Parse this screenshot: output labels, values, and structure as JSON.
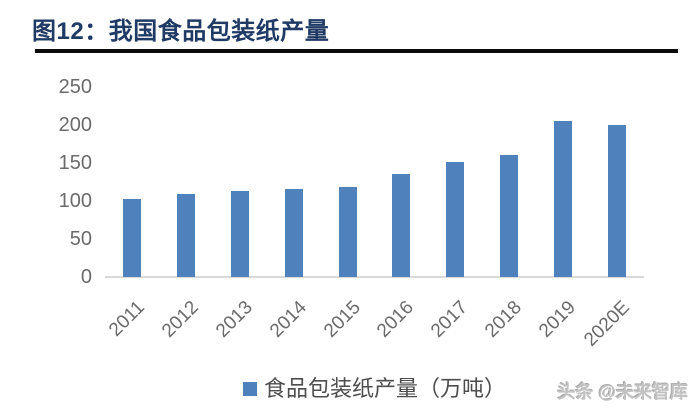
{
  "header": {
    "title": "图12：我国食品包装纸产量"
  },
  "chart_data": {
    "type": "bar",
    "categories": [
      "2011",
      "2012",
      "2013",
      "2014",
      "2015",
      "2016",
      "2017",
      "2018",
      "2019",
      "2020E"
    ],
    "values": [
      102,
      109,
      113,
      116,
      119,
      136,
      151,
      161,
      205,
      200
    ],
    "title": "图12：我国食品包装纸产量",
    "xlabel": "",
    "ylabel": "",
    "ylim": [
      0,
      250
    ],
    "yticks": [
      0,
      50,
      100,
      150,
      200,
      250
    ],
    "legend_label": "食品包装纸产量（万吨）",
    "legend_position": "bottom",
    "grid": false,
    "bar_color": "#4f81bd",
    "axis_text_color": "#6b6b6b",
    "baseline_color": "#d9d9d9"
  },
  "watermark": {
    "text": "头条 @未来智库"
  },
  "colors": {
    "title": "#1f3a64",
    "title_rule": "#0a0a0a",
    "bar": "#4f81bd",
    "axis_text": "#6b6b6b",
    "baseline": "#d9d9d9",
    "watermark": "#c3c3c3",
    "background": "#ffffff"
  }
}
